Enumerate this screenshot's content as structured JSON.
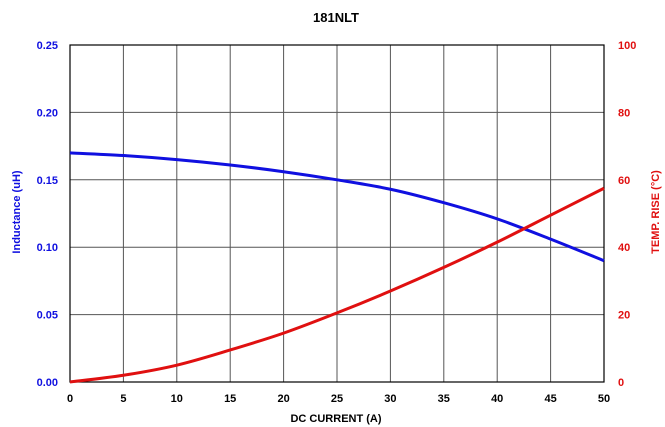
{
  "chart_data": {
    "type": "line",
    "title": "181NLT",
    "xlabel": "DC CURRENT (A)",
    "ylabel_left": "Inductance   (uH)",
    "ylabel_right": "TEMP. RISE (°C)",
    "xlim": [
      0,
      50
    ],
    "ylim_left": [
      0,
      0.25
    ],
    "ylim_right": [
      0,
      100
    ],
    "x_ticks": [
      "0",
      "5",
      "10",
      "15",
      "20",
      "25",
      "30",
      "35",
      "40",
      "45",
      "50"
    ],
    "y_left_ticks": [
      "0.00",
      "0.05",
      "0.10",
      "0.15",
      "0.20",
      "0.25"
    ],
    "y_right_ticks": [
      "0",
      "20",
      "40",
      "60",
      "80",
      "100"
    ],
    "grid": true,
    "series": [
      {
        "axis": "left",
        "color": "#1010e0",
        "x": [
          0,
          5,
          10,
          15,
          20,
          25,
          30,
          35,
          40,
          45,
          50
        ],
        "values": [
          0.17,
          0.168,
          0.165,
          0.161,
          0.156,
          0.15,
          0.143,
          0.133,
          0.121,
          0.106,
          0.09
        ]
      },
      {
        "axis": "right",
        "color": "#e01010",
        "x": [
          0,
          5,
          10,
          15,
          20,
          25,
          30,
          35,
          40,
          45,
          50
        ],
        "values": [
          0,
          2,
          5,
          9.5,
          14.5,
          20.5,
          27,
          34,
          41.5,
          49.5,
          57.5
        ]
      }
    ]
  }
}
